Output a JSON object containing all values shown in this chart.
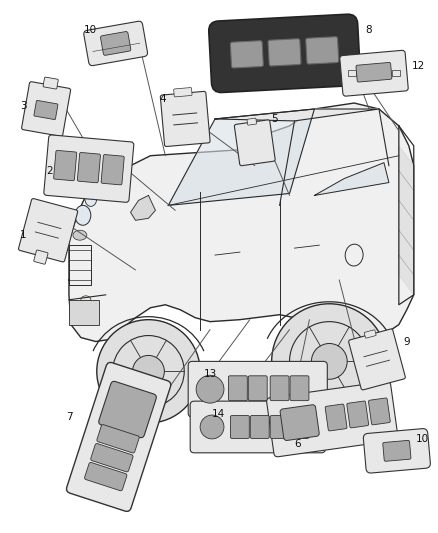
{
  "background_color": "#ffffff",
  "figsize": [
    4.38,
    5.33
  ],
  "dpi": 100,
  "line_color": "#2a2a2a",
  "label_fontsize": 7.5,
  "label_color": "#111111",
  "truck": {
    "body_color": "#f5f5f5",
    "line_width": 1.0
  },
  "parts": {
    "edge_color": "#333333",
    "face_color": "#e8e8e8",
    "dark_color": "#aaaaaa",
    "line_width": 0.8
  }
}
